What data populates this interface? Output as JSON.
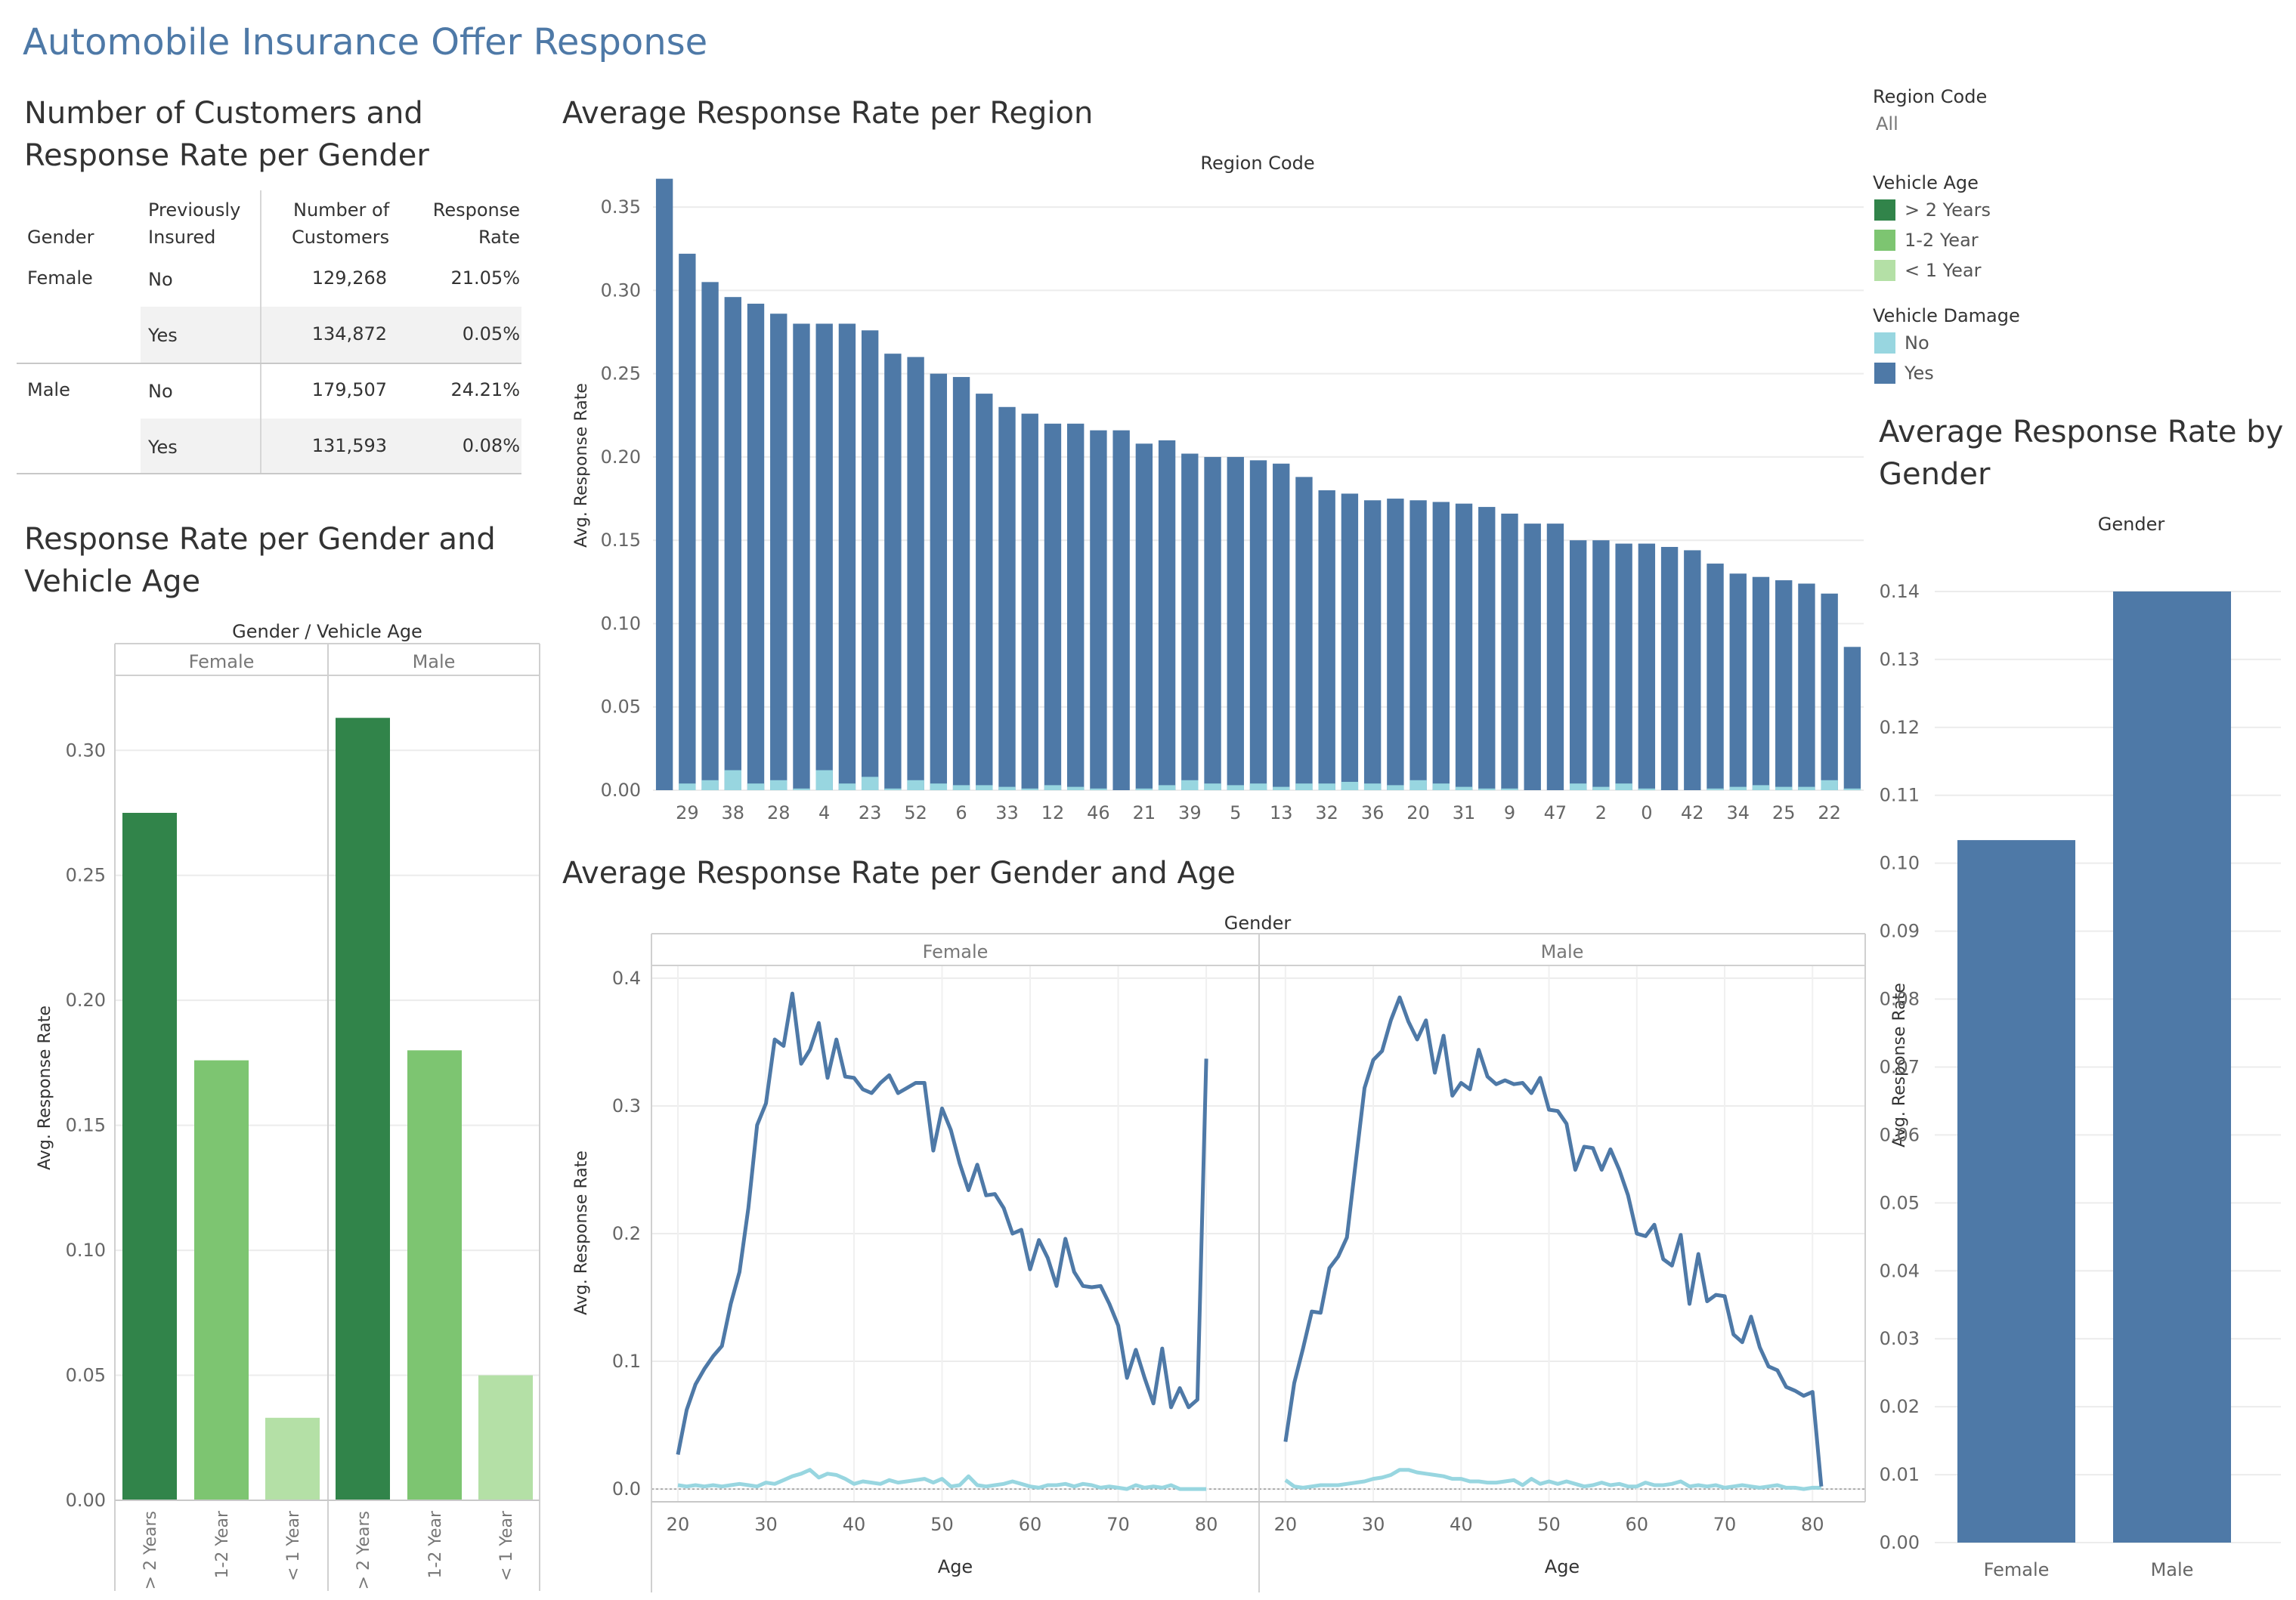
{
  "dashboard": {
    "title": "Automobile Insurance Offer Response"
  },
  "table_section": {
    "title_line1": "Number of Customers and",
    "title_line2": "Response Rate per Gender",
    "headers": {
      "gender": "Gender",
      "prev_line1": "Previously",
      "prev_line2": "Insured",
      "num_line1": "Number of",
      "num_line2": "Customers",
      "rate_line1": "Response",
      "rate_line2": "Rate"
    },
    "rows": [
      {
        "gender": "Female",
        "previously_insured": "No",
        "customers": "129,268",
        "rate": "21.05%"
      },
      {
        "gender": "",
        "previously_insured": "Yes",
        "customers": "134,872",
        "rate": "0.05%"
      },
      {
        "gender": "Male",
        "previously_insured": "No",
        "customers": "179,507",
        "rate": "24.21%"
      },
      {
        "gender": "",
        "previously_insured": "Yes",
        "customers": "131,593",
        "rate": "0.08%"
      }
    ]
  },
  "filters": {
    "region_code": {
      "label": "Region Code",
      "value": "All"
    },
    "vehicle_age": {
      "label": "Vehicle Age",
      "items": [
        {
          "label": "> 2 Years",
          "color": "#31844a"
        },
        {
          "label": "1-2 Year",
          "color": "#7dc571"
        },
        {
          "label": "< 1 Year",
          "color": "#b4e0a6"
        }
      ]
    },
    "vehicle_damage": {
      "label": "Vehicle Damage",
      "items": [
        {
          "label": "No",
          "color": "#98d6e0"
        },
        {
          "label": "Yes",
          "color": "#4e79a7"
        }
      ]
    }
  },
  "chart_data": [
    {
      "id": "gender_vehicle_age",
      "type": "bar",
      "title_line1": "Response Rate per Gender and",
      "title_line2": "Vehicle Age",
      "header": "Gender  /  Vehicle Age",
      "groups": [
        "Female",
        "Male"
      ],
      "categories": [
        "> 2 Years",
        "1-2 Year",
        "< 1 Year"
      ],
      "colors": [
        "#31844a",
        "#7dc571",
        "#b4e0a6"
      ],
      "series": [
        {
          "group": "Female",
          "values": [
            0.275,
            0.176,
            0.033
          ]
        },
        {
          "group": "Male",
          "values": [
            0.313,
            0.18,
            0.05
          ]
        }
      ],
      "ylabel": "Avg. Response Rate",
      "ylim": [
        0,
        0.33
      ],
      "yticks": [
        "0.00",
        "0.05",
        "0.10",
        "0.15",
        "0.20",
        "0.25",
        "0.30"
      ]
    },
    {
      "id": "region",
      "type": "bar",
      "stacked": true,
      "title": "Average Response Rate per Region",
      "header": "Region Code",
      "xlabels": [
        "29",
        "38",
        "28",
        "4",
        "23",
        "52",
        "6",
        "33",
        "12",
        "46",
        "21",
        "39",
        "5",
        "13",
        "32",
        "36",
        "20",
        "31",
        "9",
        "47",
        "2",
        "0",
        "42",
        "34",
        "25",
        "22"
      ],
      "bars_yes": [
        0.367,
        0.322,
        0.305,
        0.296,
        0.292,
        0.286,
        0.28,
        0.28,
        0.28,
        0.276,
        0.262,
        0.26,
        0.25,
        0.248,
        0.238,
        0.23,
        0.226,
        0.22,
        0.22,
        0.216,
        0.216,
        0.208,
        0.21,
        0.202,
        0.2,
        0.2,
        0.198,
        0.196,
        0.188,
        0.18,
        0.178,
        0.174,
        0.175,
        0.174,
        0.173,
        0.172,
        0.17,
        0.166,
        0.16,
        0.16,
        0.15,
        0.15,
        0.148,
        0.148,
        0.146,
        0.144,
        0.136,
        0.13,
        0.128,
        0.126,
        0.124,
        0.118,
        0.086
      ],
      "bars_no": [
        0.0,
        0.004,
        0.006,
        0.012,
        0.004,
        0.006,
        0.001,
        0.012,
        0.004,
        0.008,
        0.001,
        0.006,
        0.004,
        0.003,
        0.003,
        0.002,
        0.001,
        0.003,
        0.002,
        0.001,
        0.0,
        0.001,
        0.003,
        0.006,
        0.004,
        0.003,
        0.004,
        0.002,
        0.004,
        0.004,
        0.005,
        0.004,
        0.003,
        0.006,
        0.004,
        0.002,
        0.001,
        0.001,
        0.0,
        0.0,
        0.004,
        0.002,
        0.004,
        0.001,
        0.0,
        0.0,
        0.001,
        0.002,
        0.003,
        0.002,
        0.002,
        0.006,
        0.001
      ],
      "ylabel": "Avg. Response Rate",
      "ylim": [
        0,
        0.37
      ],
      "yticks": [
        "0.00",
        "0.05",
        "0.10",
        "0.15",
        "0.20",
        "0.25",
        "0.30",
        "0.35"
      ],
      "series_colors": {
        "Yes": "#4e79a7",
        "No": "#98d6e0"
      }
    },
    {
      "id": "gender_age",
      "type": "line",
      "title": "Average Response Rate per Gender and Age",
      "header": "Gender",
      "panels": [
        "Female",
        "Male"
      ],
      "xlabel": "Age",
      "ylabel": "Avg. Response Rate",
      "xlim": [
        17,
        86
      ],
      "ylim": [
        -0.01,
        0.41
      ],
      "xticks": [
        "20",
        "30",
        "40",
        "50",
        "60",
        "70",
        "80"
      ],
      "yticks": [
        "0.0",
        "0.1",
        "0.2",
        "0.3",
        "0.4"
      ],
      "female_yes": [
        0.027,
        0.062,
        0.082,
        0.094,
        0.104,
        0.112,
        0.145,
        0.17,
        0.22,
        0.285,
        0.302,
        0.352,
        0.347,
        0.388,
        0.333,
        0.344,
        0.365,
        0.322,
        0.352,
        0.323,
        0.322,
        0.313,
        0.31,
        0.318,
        0.324,
        0.31,
        0.314,
        0.318,
        0.318,
        0.265,
        0.298,
        0.281,
        0.255,
        0.234,
        0.254,
        0.23,
        0.231,
        0.22,
        0.2,
        0.203,
        0.172,
        0.195,
        0.181,
        0.159,
        0.196,
        0.17,
        0.159,
        0.158,
        0.159,
        0.145,
        0.128,
        0.087,
        0.109,
        0.087,
        0.067,
        0.11,
        0.064,
        0.079,
        0.064,
        0.07,
        0.337
      ],
      "female_no": [
        0.003,
        0.002,
        0.003,
        0.002,
        0.003,
        0.002,
        0.003,
        0.004,
        0.003,
        0.002,
        0.005,
        0.004,
        0.007,
        0.01,
        0.012,
        0.015,
        0.009,
        0.012,
        0.011,
        0.008,
        0.004,
        0.006,
        0.005,
        0.004,
        0.007,
        0.005,
        0.006,
        0.007,
        0.008,
        0.005,
        0.008,
        0.002,
        0.003,
        0.01,
        0.003,
        0.002,
        0.003,
        0.004,
        0.006,
        0.004,
        0.002,
        0.001,
        0.003,
        0.003,
        0.004,
        0.002,
        0.004,
        0.003,
        0.001,
        0.002,
        0.001,
        0.0,
        0.003,
        0.001,
        0.002,
        0.001,
        0.003,
        0.0,
        0.0,
        0.0,
        0.0
      ],
      "male_yes": [
        0.037,
        0.083,
        0.11,
        0.139,
        0.138,
        0.173,
        0.182,
        0.197,
        0.256,
        0.314,
        0.336,
        0.343,
        0.367,
        0.385,
        0.366,
        0.352,
        0.367,
        0.326,
        0.355,
        0.308,
        0.318,
        0.313,
        0.344,
        0.323,
        0.317,
        0.32,
        0.317,
        0.318,
        0.31,
        0.322,
        0.297,
        0.296,
        0.286,
        0.25,
        0.268,
        0.267,
        0.25,
        0.266,
        0.25,
        0.23,
        0.2,
        0.198,
        0.207,
        0.18,
        0.175,
        0.199,
        0.145,
        0.184,
        0.147,
        0.152,
        0.151,
        0.121,
        0.115,
        0.135,
        0.111,
        0.096,
        0.093,
        0.08,
        0.077,
        0.073,
        0.076,
        0.002
      ],
      "male_no": [
        0.007,
        0.002,
        0.001,
        0.002,
        0.003,
        0.003,
        0.003,
        0.004,
        0.005,
        0.006,
        0.008,
        0.009,
        0.011,
        0.015,
        0.015,
        0.013,
        0.012,
        0.011,
        0.01,
        0.008,
        0.008,
        0.006,
        0.006,
        0.005,
        0.005,
        0.006,
        0.007,
        0.003,
        0.008,
        0.004,
        0.006,
        0.004,
        0.006,
        0.004,
        0.002,
        0.003,
        0.005,
        0.003,
        0.004,
        0.002,
        0.002,
        0.005,
        0.003,
        0.003,
        0.004,
        0.006,
        0.002,
        0.003,
        0.002,
        0.003,
        0.001,
        0.002,
        0.003,
        0.002,
        0.001,
        0.002,
        0.003,
        0.001,
        0.001,
        0.0,
        0.001,
        0.001
      ],
      "colors": {
        "Yes": "#4e79a7",
        "No": "#98d6e0"
      }
    },
    {
      "id": "gender",
      "type": "bar",
      "title_line1": "Average Response Rate by",
      "title_line2": "Gender",
      "header": "Gender",
      "categories": [
        "Female",
        "Male"
      ],
      "values": [
        0.1034,
        0.14
      ],
      "ylabel": "Avg. Response Rate",
      "ylim": [
        0,
        0.147
      ],
      "yticks": [
        "0.00",
        "0.01",
        "0.02",
        "0.03",
        "0.04",
        "0.05",
        "0.06",
        "0.07",
        "0.08",
        "0.09",
        "0.10",
        "0.11",
        "0.12",
        "0.13",
        "0.14"
      ],
      "color": "#4e79a7"
    }
  ]
}
